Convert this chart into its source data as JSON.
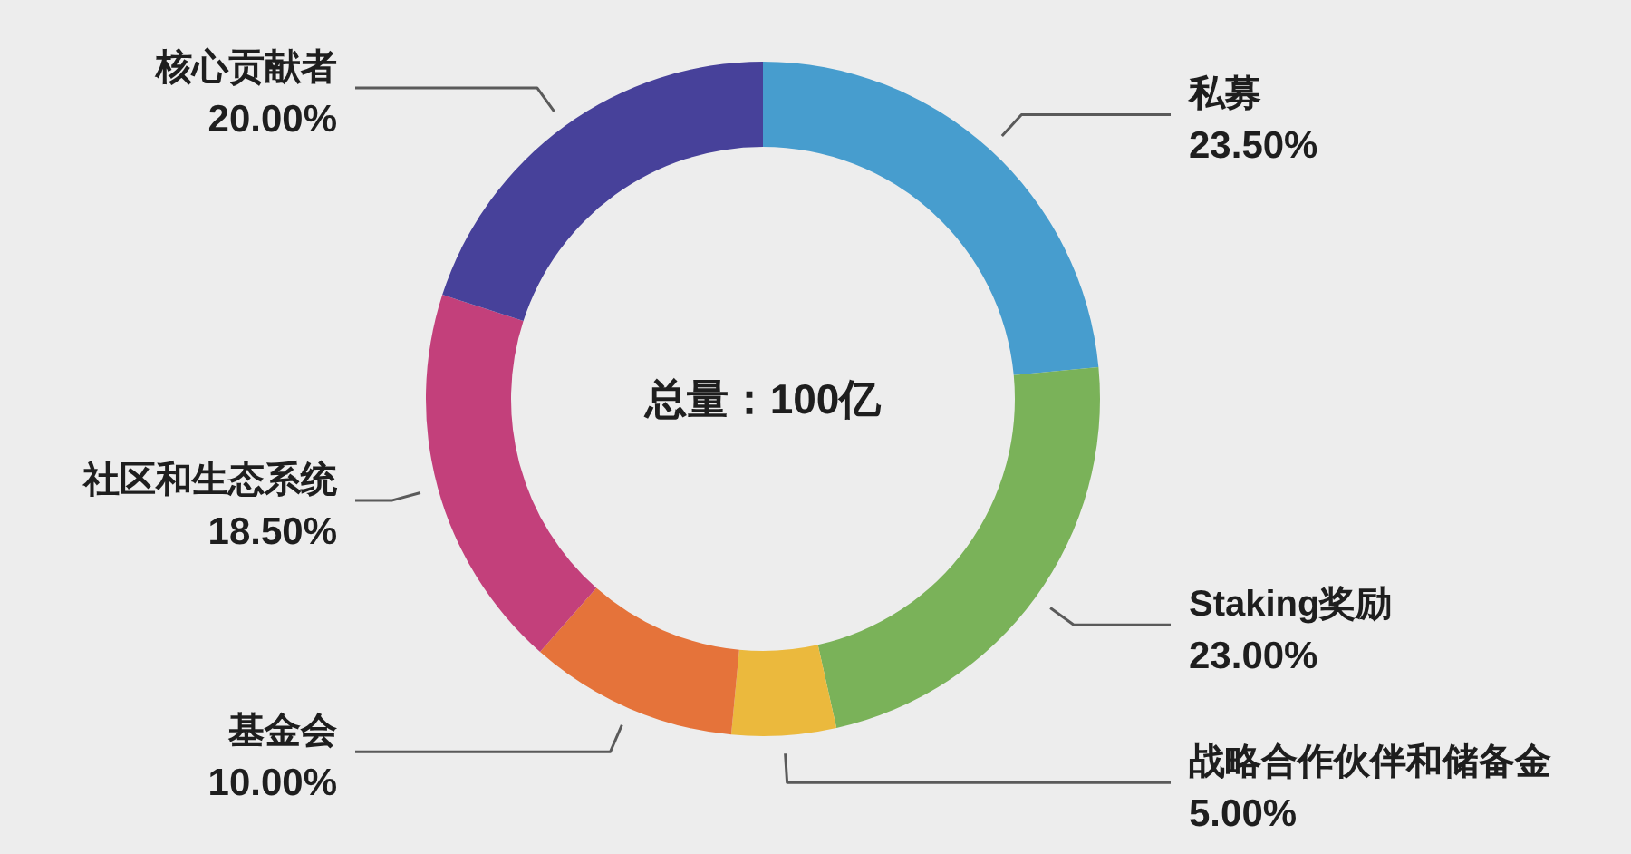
{
  "chart_data": {
    "type": "donut",
    "categories": [
      "私募",
      "Staking奖励",
      "战略合作伙伴和储备金",
      "基金会",
      "社区和生态系统",
      "核心贡献者"
    ],
    "values": [
      23.5,
      23,
      5,
      10,
      18.5,
      20
    ],
    "colors": [
      "#479dce",
      "#7ab259",
      "#ebb93d",
      "#e5733a",
      "#c3407b",
      "#47419a"
    ],
    "value_labels": [
      "23.50%",
      "23.00%",
      "5.00%",
      "10.00%",
      "18.50%",
      "20.00%"
    ],
    "annotations": [
      "总量：100亿"
    ]
  }
}
